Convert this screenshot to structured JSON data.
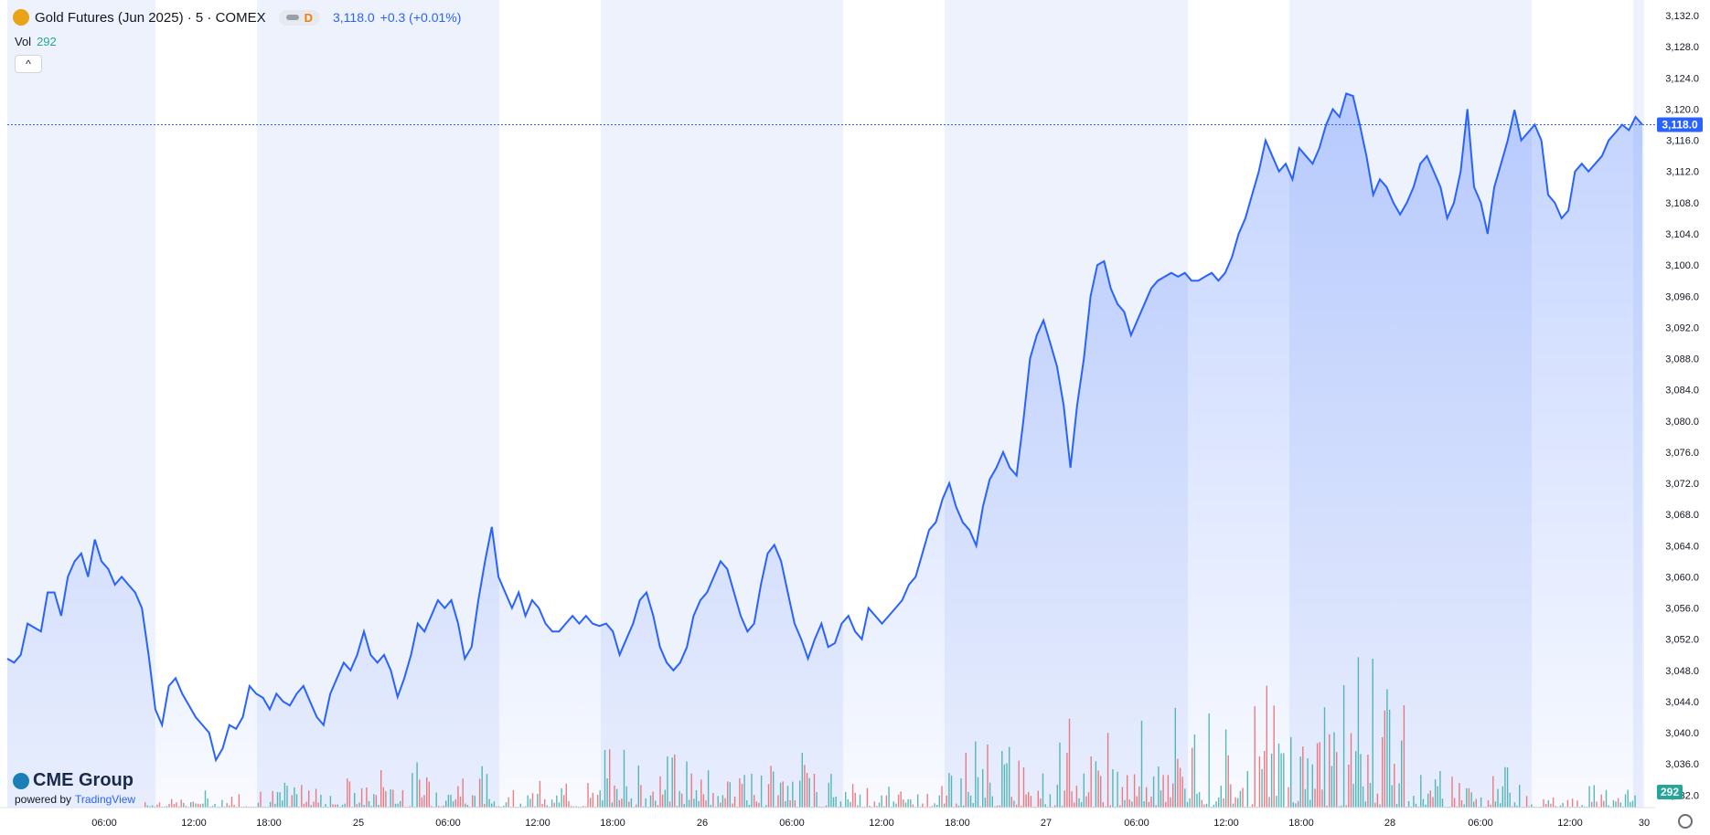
{
  "header": {
    "symbol_title": "Gold Futures (Jun 2025) · 5 · COMEX",
    "interval_badge": "D",
    "last_price": "3,118.0",
    "change": "+0.3 (+0.01%)",
    "volume_label": "Vol",
    "volume_value": "292",
    "collapse_glyph": "^"
  },
  "branding": {
    "cme": "CME Group",
    "powered_by": "powered by",
    "tradingview": "TradingView"
  },
  "colors": {
    "line": "#2962ff",
    "area_top": "#2962ff",
    "band": "#eef2fd",
    "vol_up": "#26a69a",
    "vol_down": "#ef5350",
    "axis_text": "#131722"
  },
  "chart_data": {
    "type": "area",
    "title": "Gold Futures (Jun 2025) · 5 · COMEX",
    "x_tick_labels": [
      "06:00",
      "12:00",
      "18:00",
      "25",
      "06:00",
      "12:00",
      "18:00",
      "26",
      "06:00",
      "12:00",
      "18:00",
      "27",
      "06:00",
      "12:00",
      "18:00",
      "28",
      "06:00",
      "12:00",
      "30"
    ],
    "y_tick_labels": [
      "3,132.0",
      "3,128.0",
      "3,124.0",
      "3,120.0",
      "3,116.0",
      "3,112.0",
      "3,108.0",
      "3,104.0",
      "3,100.0",
      "3,096.0",
      "3,092.0",
      "3,088.0",
      "3,084.0",
      "3,080.0",
      "3,076.0",
      "3,072.0",
      "3,068.0",
      "3,064.0",
      "3,060.0",
      "3,056.0",
      "3,052.0",
      "3,048.0",
      "3,044.0",
      "3,040.0",
      "3,036.0",
      "3,032.0"
    ],
    "ylim": [
      3030.4,
      3133.3
    ],
    "last_price_label": "3,118.0",
    "last_volume_label": "292",
    "series": [
      {
        "name": "Gold Futures (Jun 2025)",
        "values": [
          3049.5,
          3049,
          3050,
          3054,
          3053.5,
          3053,
          3058,
          3058,
          3055,
          3060,
          3062,
          3063,
          3060,
          3064.8,
          3062,
          3061,
          3059,
          3060,
          3059,
          3058,
          3056,
          3050,
          3043,
          3041,
          3046,
          3047,
          3045,
          3043.5,
          3042,
          3041,
          3040,
          3036.5,
          3038,
          3041,
          3040.5,
          3042,
          3046,
          3045,
          3044.5,
          3043,
          3045,
          3044,
          3043.5,
          3045,
          3046,
          3044,
          3042,
          3041,
          3045,
          3047,
          3049,
          3048,
          3050,
          3053,
          3050,
          3049,
          3050,
          3048,
          3044.6,
          3047,
          3050,
          3054,
          3053,
          3055,
          3057,
          3056,
          3057,
          3054,
          3049.5,
          3051,
          3057,
          3062,
          3066.4,
          3060,
          3058,
          3056,
          3058,
          3055,
          3057,
          3056,
          3054,
          3053,
          3053,
          3054,
          3055,
          3054,
          3055,
          3054,
          3053.7,
          3054,
          3053,
          3050,
          3052,
          3054,
          3057,
          3058,
          3055,
          3051,
          3049,
          3048,
          3049,
          3051,
          3055,
          3057,
          3058,
          3060,
          3062,
          3061,
          3058,
          3055,
          3053,
          3054,
          3059,
          3063,
          3064.1,
          3062,
          3058,
          3054,
          3052,
          3049.5,
          3052,
          3054,
          3051,
          3051.5,
          3054,
          3055,
          3053,
          3052,
          3056,
          3055,
          3054,
          3055,
          3056,
          3057,
          3059,
          3060,
          3063,
          3066,
          3067,
          3070,
          3072,
          3069,
          3067,
          3066,
          3064,
          3069,
          3072.5,
          3074,
          3076,
          3074,
          3073,
          3080,
          3088,
          3091,
          3092.9,
          3090,
          3087,
          3082,
          3074,
          3082,
          3088,
          3096,
          3100,
          3100.5,
          3097,
          3095,
          3094,
          3091,
          3093,
          3095,
          3097,
          3098,
          3098.5,
          3099,
          3098.5,
          3099,
          3098,
          3098,
          3098.5,
          3099,
          3098,
          3099,
          3101,
          3104,
          3106,
          3109,
          3112,
          3116,
          3114,
          3112,
          3113,
          3111,
          3115,
          3114,
          3113,
          3115,
          3118,
          3120,
          3119,
          3122,
          3121.7,
          3118,
          3114,
          3109,
          3111,
          3110,
          3108,
          3106.5,
          3108,
          3110,
          3113,
          3114,
          3112,
          3110,
          3106,
          3108,
          3112,
          3120,
          3110,
          3108,
          3104,
          3110,
          3113,
          3116,
          3119.9,
          3116,
          3117,
          3118,
          3116,
          3109,
          3108,
          3106,
          3107,
          3112,
          3113,
          3112,
          3113,
          3114,
          3116,
          3117,
          3118,
          3117.3,
          3119,
          3118
        ]
      }
    ],
    "volume": {
      "last": 292,
      "peaks": [
        5,
        9,
        14,
        8,
        22,
        18,
        7,
        23,
        28,
        35,
        51,
        17,
        8
      ]
    }
  }
}
